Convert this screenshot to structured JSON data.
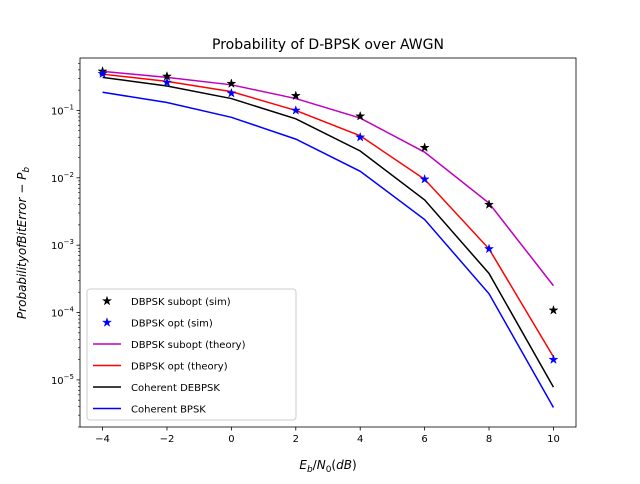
{
  "chart_data": {
    "type": "line",
    "title": "Probability of D-BPSK over AWGN",
    "xlabel": "E_b/N_0(dB)",
    "ylabel": "Probability of Bit Error − P_b",
    "xlim": [
      -4.7,
      10.7
    ],
    "ylim": [
      2e-06,
      0.6
    ],
    "xscale": "linear",
    "yscale": "log",
    "x": [
      -4,
      -2,
      0,
      2,
      4,
      6,
      8,
      10
    ],
    "x_tick_labels": [
      "−4",
      "−2",
      "0",
      "2",
      "4",
      "6",
      "8",
      "10"
    ],
    "y_ticks": [
      1e-05,
      0.0001,
      0.001,
      0.01,
      0.1
    ],
    "y_tick_labels": [
      {
        "base": "10",
        "exp": "−5"
      },
      {
        "base": "10",
        "exp": "−4"
      },
      {
        "base": "10",
        "exp": "−3"
      },
      {
        "base": "10",
        "exp": "−2"
      },
      {
        "base": "10",
        "exp": "−1"
      }
    ],
    "grid": false,
    "legend_position": "lower-left",
    "series": [
      {
        "name": "DBPSK subopt (sim)",
        "style": "marker",
        "marker": "star",
        "color": "#000000",
        "values": [
          0.38,
          0.32,
          0.25,
          0.165,
          0.082,
          0.028,
          0.004,
          0.000108
        ]
      },
      {
        "name": "DBPSK opt (sim)",
        "style": "marker",
        "marker": "star",
        "color": "#0000ff",
        "values": [
          0.35,
          0.26,
          0.18,
          0.1,
          0.04,
          0.0095,
          0.00088,
          2e-05
        ]
      },
      {
        "name": "DBPSK subopt (theory)",
        "style": "line",
        "color": "#bf00bf",
        "values": [
          0.38,
          0.31,
          0.24,
          0.15,
          0.077,
          0.024,
          0.0042,
          0.00025
        ]
      },
      {
        "name": "DBPSK opt (theory)",
        "style": "line",
        "color": "#ff0000",
        "values": [
          0.345,
          0.27,
          0.19,
          0.1,
          0.042,
          0.0095,
          0.00088,
          2.2e-05
        ]
      },
      {
        "name": "Coherent DEBPSK",
        "style": "line",
        "color": "#000000",
        "values": [
          0.31,
          0.23,
          0.15,
          0.075,
          0.025,
          0.0047,
          0.00038,
          7.8e-06
        ]
      },
      {
        "name": "Coherent BPSK",
        "style": "line",
        "color": "#0000ff",
        "values": [
          0.186,
          0.131,
          0.079,
          0.0375,
          0.0125,
          0.0024,
          0.00019,
          3.9e-06
        ]
      }
    ]
  }
}
